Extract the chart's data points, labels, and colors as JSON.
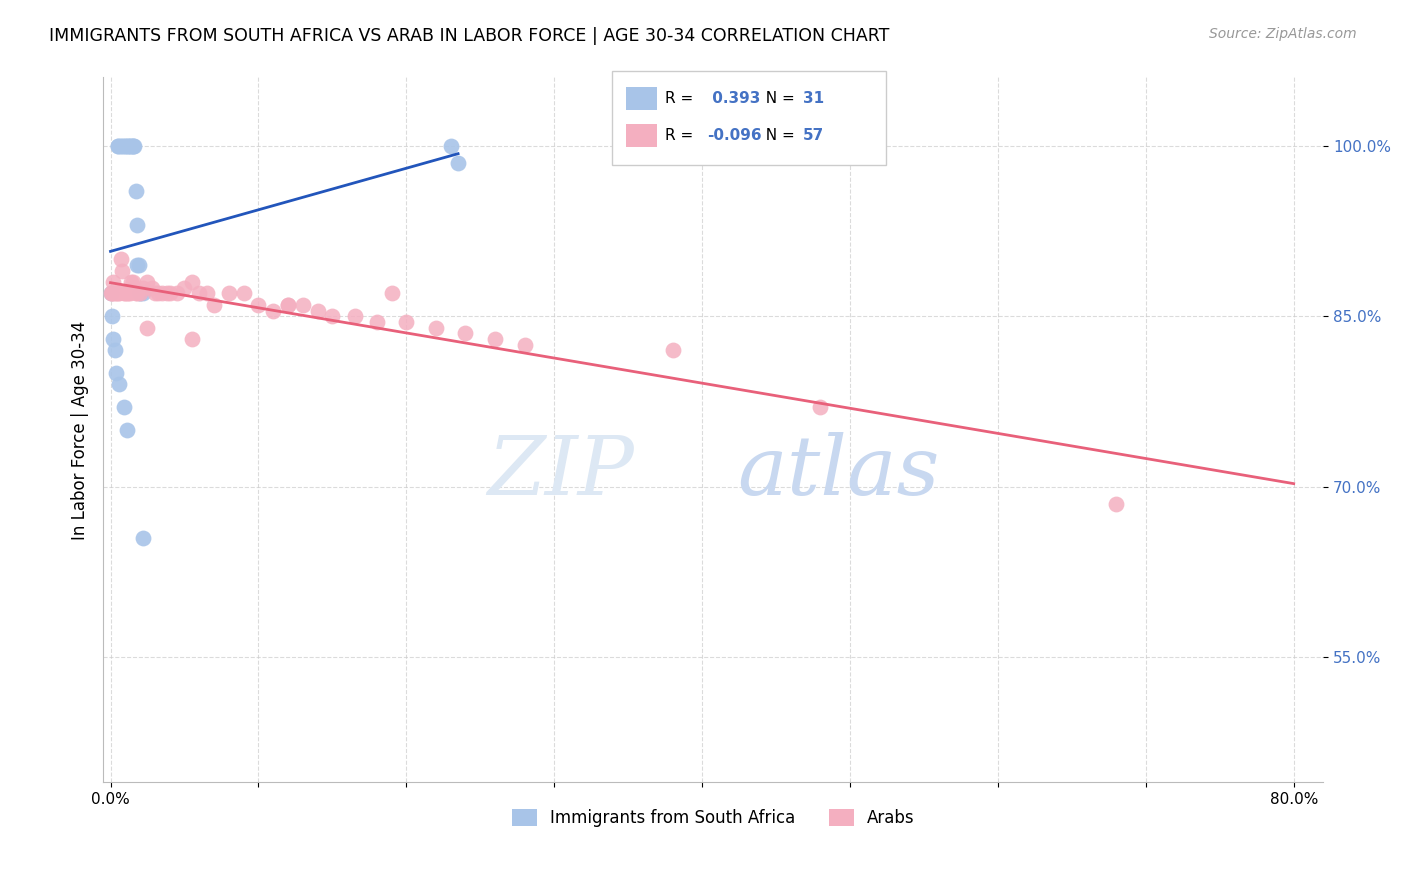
{
  "title": "IMMIGRANTS FROM SOUTH AFRICA VS ARAB IN LABOR FORCE | AGE 30-34 CORRELATION CHART",
  "source": "Source: ZipAtlas.com",
  "ylabel": "In Labor Force | Age 30-34",
  "xlim": [
    -0.005,
    0.82
  ],
  "ylim": [
    0.44,
    1.06
  ],
  "R_blue": 0.393,
  "N_blue": 31,
  "R_pink": -0.096,
  "N_pink": 57,
  "blue_color": "#a8c4e8",
  "pink_color": "#f4afc0",
  "blue_line_color": "#2255bb",
  "pink_line_color": "#e8607a",
  "legend_blue_label": "Immigrants from South Africa",
  "legend_pink_label": "Arabs",
  "watermark_zip": "ZIP",
  "watermark_atlas": "atlas",
  "blue_points_x": [
    0.005,
    0.005,
    0.007,
    0.008,
    0.01,
    0.01,
    0.012,
    0.012,
    0.013,
    0.014,
    0.015,
    0.015,
    0.016,
    0.017,
    0.018,
    0.018,
    0.019,
    0.02,
    0.02,
    0.022,
    0.0,
    0.001,
    0.002,
    0.003,
    0.004,
    0.006,
    0.009,
    0.011,
    0.022,
    0.23,
    0.235
  ],
  "blue_points_y": [
    1.0,
    1.0,
    1.0,
    1.0,
    1.0,
    1.0,
    1.0,
    1.0,
    1.0,
    1.0,
    1.0,
    1.0,
    1.0,
    0.96,
    0.93,
    0.895,
    0.895,
    0.87,
    0.87,
    0.87,
    0.87,
    0.85,
    0.83,
    0.82,
    0.8,
    0.79,
    0.77,
    0.75,
    0.655,
    1.0,
    0.985
  ],
  "pink_points_x": [
    0.0,
    0.001,
    0.001,
    0.002,
    0.003,
    0.004,
    0.005,
    0.006,
    0.007,
    0.008,
    0.009,
    0.01,
    0.011,
    0.012,
    0.013,
    0.014,
    0.015,
    0.016,
    0.017,
    0.018,
    0.02,
    0.022,
    0.025,
    0.028,
    0.03,
    0.032,
    0.035,
    0.038,
    0.04,
    0.045,
    0.05,
    0.055,
    0.06,
    0.065,
    0.07,
    0.08,
    0.09,
    0.1,
    0.11,
    0.12,
    0.13,
    0.14,
    0.15,
    0.165,
    0.18,
    0.2,
    0.22,
    0.24,
    0.26,
    0.28,
    0.025,
    0.055,
    0.12,
    0.19,
    0.38,
    0.48,
    0.68
  ],
  "pink_points_y": [
    0.87,
    0.87,
    0.87,
    0.88,
    0.87,
    0.87,
    0.87,
    0.87,
    0.9,
    0.89,
    0.87,
    0.87,
    0.87,
    0.87,
    0.87,
    0.88,
    0.88,
    0.875,
    0.87,
    0.87,
    0.87,
    0.875,
    0.88,
    0.875,
    0.87,
    0.87,
    0.87,
    0.87,
    0.87,
    0.87,
    0.875,
    0.88,
    0.87,
    0.87,
    0.86,
    0.87,
    0.87,
    0.86,
    0.855,
    0.86,
    0.86,
    0.855,
    0.85,
    0.85,
    0.845,
    0.845,
    0.84,
    0.835,
    0.83,
    0.825,
    0.84,
    0.83,
    0.86,
    0.87,
    0.82,
    0.77,
    0.685
  ]
}
